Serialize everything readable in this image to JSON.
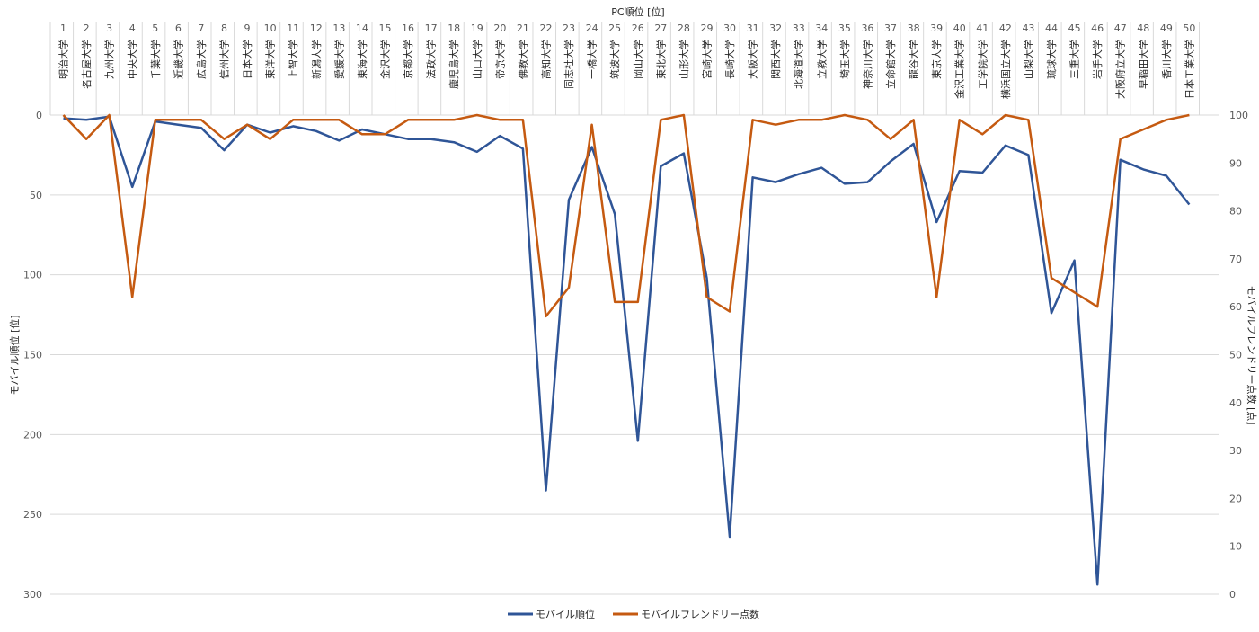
{
  "colors": {
    "mobile_rank": "#2F5597",
    "friendly_score": "#C55A11",
    "grid": "#D9D9D9"
  },
  "chart_data": {
    "type": "line",
    "top_axis_title": "PC順位 [位]",
    "left_axis_title": "モバイル順位 [位]",
    "right_axis_title": "モバイルフレンドリー点数 [点]",
    "ranks": [
      1,
      2,
      3,
      4,
      5,
      6,
      7,
      8,
      9,
      10,
      11,
      12,
      13,
      14,
      15,
      16,
      17,
      18,
      19,
      20,
      21,
      22,
      23,
      24,
      25,
      26,
      27,
      28,
      29,
      30,
      31,
      32,
      33,
      34,
      35,
      36,
      37,
      38,
      39,
      40,
      41,
      42,
      43,
      44,
      45,
      46,
      47,
      48,
      49,
      50
    ],
    "categories": [
      "明治大学",
      "名古屋大学",
      "九州大学",
      "中央大学",
      "千葉大学",
      "近畿大学",
      "広島大学",
      "信州大学",
      "日本大学",
      "東洋大学",
      "上智大学",
      "新潟大学",
      "愛媛大学",
      "東海大学",
      "金沢大学",
      "京都大学",
      "法政大学",
      "鹿児島大学",
      "山口大学",
      "帝京大学",
      "佛教大学",
      "高知大学",
      "同志社大学",
      "一橋大学",
      "筑波大学",
      "岡山大学",
      "東北大学",
      "山形大学",
      "宮崎大学",
      "長崎大学",
      "大阪大学",
      "関西大学",
      "北海道大学",
      "立教大学",
      "埼玉大学",
      "神奈川大学",
      "立命館大学",
      "龍谷大学",
      "東京大学",
      "金沢工業大学",
      "工学院大学",
      "横浜国立大学",
      "山梨大学",
      "琉球大学",
      "三重大学",
      "岩手大学",
      "大阪府立大学",
      "早稲田大学",
      "香川大学",
      "日本工業大学"
    ],
    "left_axis": {
      "min": 0,
      "max": 300,
      "reversed": true,
      "ticks": [
        0,
        50,
        100,
        150,
        200,
        250,
        300
      ]
    },
    "right_axis": {
      "min": 0,
      "max": 100,
      "ticks": [
        0,
        10,
        20,
        30,
        40,
        50,
        60,
        70,
        80,
        90,
        100
      ]
    },
    "grid": "horizontal",
    "legend_position": "bottom",
    "series": [
      {
        "name": "モバイル順位",
        "axis": "left",
        "values": [
          2,
          3,
          1,
          45,
          4,
          6,
          8,
          22,
          6,
          11,
          7,
          10,
          16,
          9,
          12,
          15,
          15,
          17,
          23,
          13,
          21,
          235,
          53,
          20,
          62,
          204,
          32,
          24,
          102,
          264,
          39,
          42,
          37,
          33,
          43,
          42,
          29,
          18,
          67,
          35,
          36,
          19,
          25,
          124,
          91,
          294,
          28,
          34,
          38,
          56
        ]
      },
      {
        "name": "モバイルフレンドリー点数",
        "axis": "right",
        "values": [
          100,
          95,
          100,
          62,
          99,
          99,
          99,
          95,
          98,
          95,
          99,
          99,
          99,
          96,
          96,
          99,
          99,
          99,
          100,
          99,
          99,
          58,
          64,
          98,
          61,
          61,
          99,
          100,
          62,
          59,
          99,
          98,
          99,
          99,
          100,
          99,
          95,
          99,
          62,
          99,
          96,
          100,
          99,
          66,
          63,
          60,
          95,
          97,
          99,
          100
        ]
      }
    ]
  }
}
